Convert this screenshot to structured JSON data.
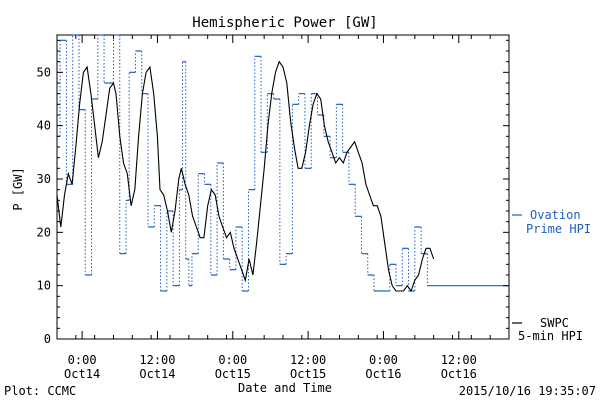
{
  "chart_data": {
    "type": "line",
    "title": "Hemispheric Power [GW]",
    "ylabel": "P [GW]",
    "xlabel": "Date and Time",
    "ylim": [
      0,
      57
    ],
    "xlim": [
      "2015-10-13 20:00",
      "2015-10-16 20:00"
    ],
    "grid": false,
    "y_ticks": [
      0,
      10,
      20,
      30,
      40,
      50
    ],
    "x_ticks": [
      {
        "x": "2015-10-14 00:00",
        "time": "0:00",
        "day": "Oct14"
      },
      {
        "x": "2015-10-14 12:00",
        "time": "12:00",
        "day": "Oct14"
      },
      {
        "x": "2015-10-15 00:00",
        "time": "0:00",
        "day": "Oct15"
      },
      {
        "x": "2015-10-15 12:00",
        "time": "12:00",
        "day": "Oct15"
      },
      {
        "x": "2015-10-16 00:00",
        "time": "0:00",
        "day": "Oct16"
      },
      {
        "x": "2015-10-16 12:00",
        "time": "12:00",
        "day": "Oct16"
      }
    ],
    "series": [
      {
        "name": "SWPC 5-min HPI",
        "legend_lines": [
          "SWPC",
          "5-min HPI"
        ],
        "color": "#000000",
        "style": "solid",
        "points": [
          [
            "2015-10-13 20:00",
            27
          ],
          [
            "2015-10-13 20:36",
            21
          ],
          [
            "2015-10-13 21:12",
            27
          ],
          [
            "2015-10-13 21:48",
            31
          ],
          [
            "2015-10-13 22:24",
            29
          ],
          [
            "2015-10-13 23:00",
            36
          ],
          [
            "2015-10-13 23:36",
            44
          ],
          [
            "2015-10-14 00:12",
            50
          ],
          [
            "2015-10-14 00:48",
            51
          ],
          [
            "2015-10-14 01:24",
            46
          ],
          [
            "2015-10-14 02:00",
            40
          ],
          [
            "2015-10-14 02:36",
            34
          ],
          [
            "2015-10-14 03:12",
            37
          ],
          [
            "2015-10-14 03:48",
            42
          ],
          [
            "2015-10-14 04:24",
            47
          ],
          [
            "2015-10-14 05:00",
            48
          ],
          [
            "2015-10-14 05:24",
            46
          ],
          [
            "2015-10-14 06:00",
            38
          ],
          [
            "2015-10-14 06:36",
            33
          ],
          [
            "2015-10-14 07:12",
            31
          ],
          [
            "2015-10-14 07:48",
            25
          ],
          [
            "2015-10-14 08:24",
            28
          ],
          [
            "2015-10-14 09:00",
            38
          ],
          [
            "2015-10-14 09:36",
            46
          ],
          [
            "2015-10-14 10:12",
            50
          ],
          [
            "2015-10-14 10:48",
            51
          ],
          [
            "2015-10-14 11:24",
            46
          ],
          [
            "2015-10-14 12:00",
            38
          ],
          [
            "2015-10-14 12:24",
            28
          ],
          [
            "2015-10-14 13:00",
            27
          ],
          [
            "2015-10-14 13:36",
            24
          ],
          [
            "2015-10-14 14:12",
            20
          ],
          [
            "2015-10-14 14:48",
            24
          ],
          [
            "2015-10-14 15:24",
            30
          ],
          [
            "2015-10-14 15:48",
            32
          ],
          [
            "2015-10-14 16:24",
            29
          ],
          [
            "2015-10-14 17:00",
            27
          ],
          [
            "2015-10-14 17:36",
            23
          ],
          [
            "2015-10-14 18:12",
            21
          ],
          [
            "2015-10-14 18:48",
            19
          ],
          [
            "2015-10-14 19:24",
            19
          ],
          [
            "2015-10-14 20:00",
            25
          ],
          [
            "2015-10-14 20:36",
            28
          ],
          [
            "2015-10-14 21:12",
            27
          ],
          [
            "2015-10-14 21:48",
            23
          ],
          [
            "2015-10-14 22:24",
            21
          ],
          [
            "2015-10-14 23:00",
            19
          ],
          [
            "2015-10-14 23:36",
            20
          ],
          [
            "2015-10-15 00:12",
            17
          ],
          [
            "2015-10-15 00:48",
            15
          ],
          [
            "2015-10-15 01:24",
            13
          ],
          [
            "2015-10-15 02:00",
            11
          ],
          [
            "2015-10-15 02:36",
            15
          ],
          [
            "2015-10-15 03:12",
            12
          ],
          [
            "2015-10-15 03:48",
            18
          ],
          [
            "2015-10-15 04:24",
            25
          ],
          [
            "2015-10-15 05:00",
            32
          ],
          [
            "2015-10-15 05:36",
            40
          ],
          [
            "2015-10-15 06:12",
            46
          ],
          [
            "2015-10-15 06:48",
            50
          ],
          [
            "2015-10-15 07:24",
            52
          ],
          [
            "2015-10-15 08:00",
            51
          ],
          [
            "2015-10-15 08:36",
            48
          ],
          [
            "2015-10-15 09:12",
            41
          ],
          [
            "2015-10-15 09:48",
            36
          ],
          [
            "2015-10-15 10:24",
            32
          ],
          [
            "2015-10-15 11:00",
            32
          ],
          [
            "2015-10-15 11:36",
            35
          ],
          [
            "2015-10-15 12:12",
            40
          ],
          [
            "2015-10-15 12:48",
            44
          ],
          [
            "2015-10-15 13:24",
            46
          ],
          [
            "2015-10-15 14:00",
            45
          ],
          [
            "2015-10-15 14:36",
            40
          ],
          [
            "2015-10-15 15:12",
            37
          ],
          [
            "2015-10-15 15:48",
            35
          ],
          [
            "2015-10-15 16:24",
            33
          ],
          [
            "2015-10-15 17:00",
            34
          ],
          [
            "2015-10-15 17:36",
            33
          ],
          [
            "2015-10-15 18:12",
            35
          ],
          [
            "2015-10-15 18:48",
            36
          ],
          [
            "2015-10-15 19:24",
            37
          ],
          [
            "2015-10-15 20:00",
            35
          ],
          [
            "2015-10-15 20:36",
            33
          ],
          [
            "2015-10-15 21:12",
            29
          ],
          [
            "2015-10-15 21:48",
            27
          ],
          [
            "2015-10-15 22:24",
            25
          ],
          [
            "2015-10-15 23:00",
            25
          ],
          [
            "2015-10-15 23:36",
            23
          ],
          [
            "2015-10-16 00:12",
            18
          ],
          [
            "2015-10-16 00:48",
            13
          ],
          [
            "2015-10-16 01:24",
            10
          ],
          [
            "2015-10-16 02:00",
            9
          ],
          [
            "2015-10-16 03:12",
            9
          ],
          [
            "2015-10-16 03:48",
            10
          ],
          [
            "2015-10-16 04:24",
            9
          ],
          [
            "2015-10-16 05:00",
            11
          ],
          [
            "2015-10-16 05:36",
            12
          ],
          [
            "2015-10-16 06:12",
            15
          ],
          [
            "2015-10-16 06:48",
            17
          ],
          [
            "2015-10-16 07:24",
            17
          ],
          [
            "2015-10-16 08:00",
            15
          ]
        ]
      },
      {
        "name": "Ovation Prime HPI",
        "legend_lines": [
          "Ovation",
          "Prime HPI"
        ],
        "color": "#1f5fbf",
        "style": "dotted-step",
        "points": [
          [
            "2015-10-13 20:00",
            38
          ],
          [
            "2015-10-13 20:30",
            56
          ],
          [
            "2015-10-13 21:30",
            29
          ],
          [
            "2015-10-13 22:30",
            57
          ],
          [
            "2015-10-13 23:30",
            43
          ],
          [
            "2015-10-14 00:30",
            12
          ],
          [
            "2015-10-14 01:30",
            45
          ],
          [
            "2015-10-14 02:30",
            57
          ],
          [
            "2015-10-14 03:30",
            48
          ],
          [
            "2015-10-14 05:00",
            57
          ],
          [
            "2015-10-14 06:00",
            16
          ],
          [
            "2015-10-14 07:00",
            26
          ],
          [
            "2015-10-14 07:30",
            50
          ],
          [
            "2015-10-14 08:30",
            54
          ],
          [
            "2015-10-14 09:30",
            46
          ],
          [
            "2015-10-14 10:30",
            21
          ],
          [
            "2015-10-14 11:30",
            25
          ],
          [
            "2015-10-14 12:30",
            9
          ],
          [
            "2015-10-14 13:30",
            24
          ],
          [
            "2015-10-14 14:30",
            10
          ],
          [
            "2015-10-14 15:30",
            28
          ],
          [
            "2015-10-14 16:00",
            52
          ],
          [
            "2015-10-14 16:30",
            15
          ],
          [
            "2015-10-14 17:00",
            10
          ],
          [
            "2015-10-14 17:30",
            16
          ],
          [
            "2015-10-14 18:30",
            31
          ],
          [
            "2015-10-14 19:30",
            29
          ],
          [
            "2015-10-14 20:30",
            12
          ],
          [
            "2015-10-14 21:30",
            33
          ],
          [
            "2015-10-14 22:30",
            15
          ],
          [
            "2015-10-14 23:30",
            13
          ],
          [
            "2015-10-15 00:30",
            21
          ],
          [
            "2015-10-15 01:30",
            9
          ],
          [
            "2015-10-15 02:30",
            28
          ],
          [
            "2015-10-15 03:30",
            53
          ],
          [
            "2015-10-15 04:30",
            35
          ],
          [
            "2015-10-15 05:30",
            46
          ],
          [
            "2015-10-15 06:30",
            45
          ],
          [
            "2015-10-15 07:30",
            14
          ],
          [
            "2015-10-15 08:30",
            16
          ],
          [
            "2015-10-15 09:30",
            44
          ],
          [
            "2015-10-15 10:30",
            46
          ],
          [
            "2015-10-15 11:30",
            32
          ],
          [
            "2015-10-15 12:30",
            46
          ],
          [
            "2015-10-15 13:30",
            42
          ],
          [
            "2015-10-15 14:30",
            38
          ],
          [
            "2015-10-15 15:30",
            34
          ],
          [
            "2015-10-15 16:30",
            44
          ],
          [
            "2015-10-15 17:30",
            35
          ],
          [
            "2015-10-15 18:30",
            29
          ],
          [
            "2015-10-15 19:30",
            23
          ],
          [
            "2015-10-15 20:30",
            16
          ],
          [
            "2015-10-15 21:30",
            12
          ],
          [
            "2015-10-15 22:30",
            9
          ],
          [
            "2015-10-16 00:00",
            9
          ],
          [
            "2015-10-16 01:00",
            14
          ],
          [
            "2015-10-16 02:00",
            10
          ],
          [
            "2015-10-16 03:00",
            17
          ],
          [
            "2015-10-16 04:00",
            9
          ],
          [
            "2015-10-16 05:00",
            21
          ],
          [
            "2015-10-16 06:00",
            16
          ],
          [
            "2015-10-16 07:00",
            10
          ]
        ]
      }
    ]
  },
  "footer": {
    "left": "Plot: CCMC",
    "right": "2015/10/16 19:35:07"
  }
}
